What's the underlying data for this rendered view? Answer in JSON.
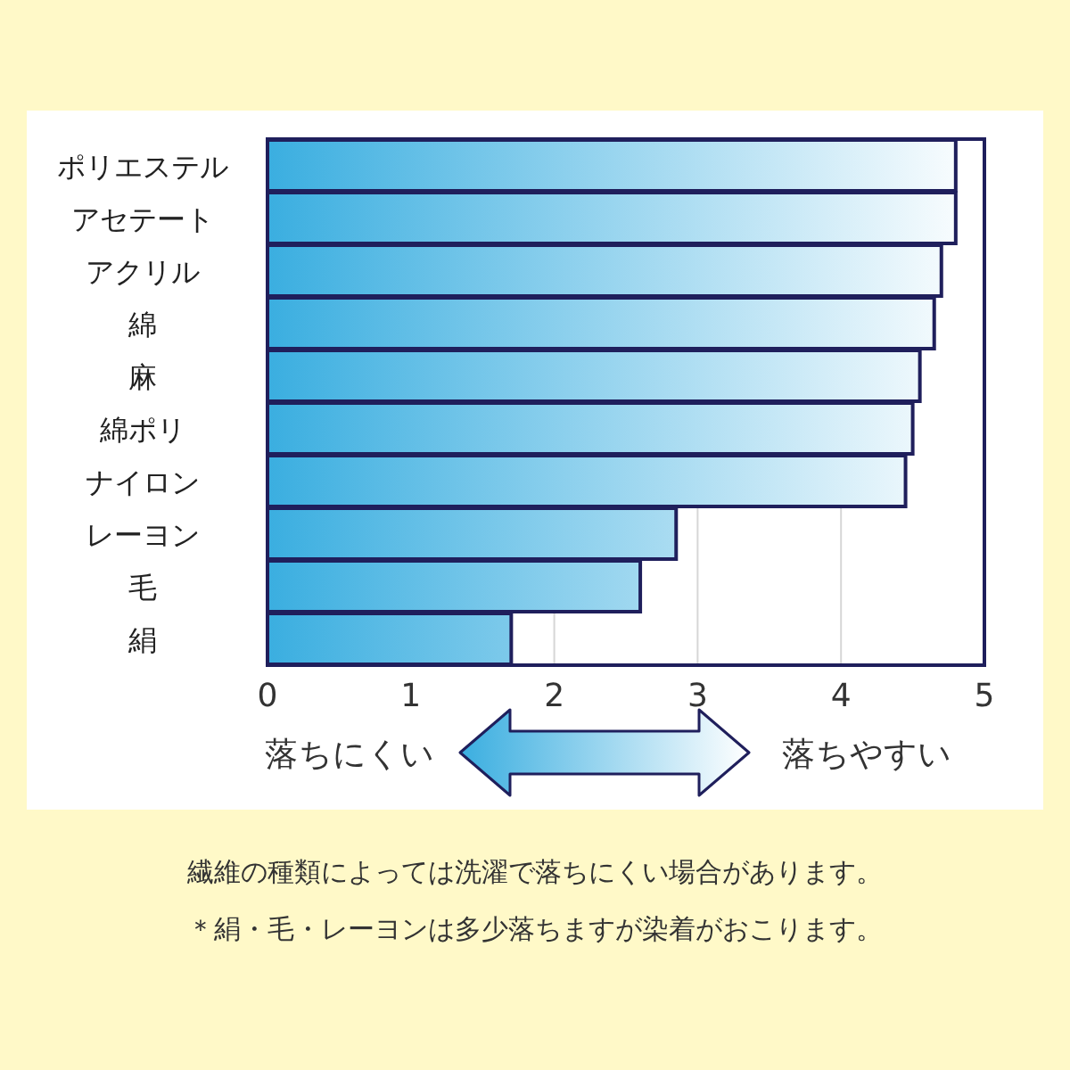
{
  "chart_data": {
    "type": "bar",
    "orientation": "horizontal",
    "categories": [
      "ポリエステル",
      "アセテート",
      "アクリル",
      "綿",
      "麻",
      "綿ポリ",
      "ナイロン",
      "レーヨン",
      "毛",
      "絹"
    ],
    "values": [
      4.8,
      4.8,
      4.7,
      4.65,
      4.55,
      4.5,
      4.45,
      2.85,
      2.6,
      1.7
    ],
    "color": "#3aaee0",
    "xlim": [
      0,
      5
    ],
    "xticks": [
      0,
      1,
      2,
      3,
      4,
      5
    ],
    "grid": "x",
    "annotations": [
      "落ちにくい",
      "落ちやすい",
      "繊維の種類によっては洗濯で落ちにくい場合があります。",
      "＊絹・毛・レーヨンは多少落ちますが染着がおこります。"
    ]
  }
}
